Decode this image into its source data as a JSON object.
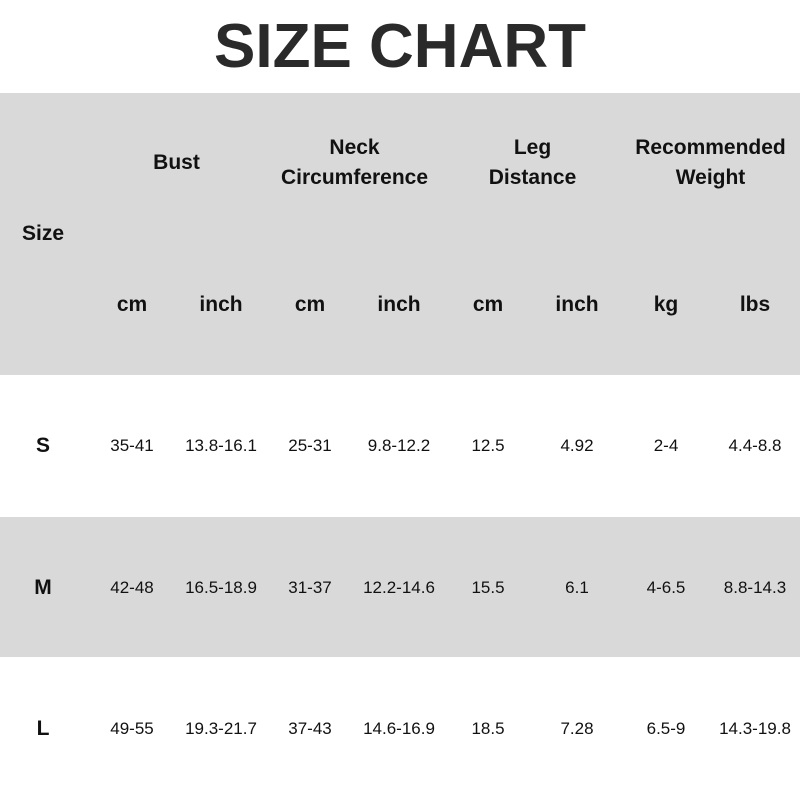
{
  "title": "SIZE CHART",
  "colors": {
    "header_band": "#d9d9d9",
    "alt_row": "#d9d9d9",
    "title": "#2a2a2a"
  },
  "chart_data": {
    "type": "table",
    "title": "SIZE CHART",
    "size_header": "Size",
    "groups": [
      {
        "label_lines": [
          "Bust"
        ],
        "units": [
          "cm",
          "inch"
        ]
      },
      {
        "label_lines": [
          "Neck",
          "Circumference"
        ],
        "units": [
          "cm",
          "inch"
        ]
      },
      {
        "label_lines": [
          "Leg",
          "Distance"
        ],
        "units": [
          "cm",
          "inch"
        ]
      },
      {
        "label_lines": [
          "Recommended",
          "Weight"
        ],
        "units": [
          "kg",
          "lbs"
        ]
      }
    ],
    "rows": [
      {
        "size": "S",
        "values": [
          "35-41",
          "13.8-16.1",
          "25-31",
          "9.8-12.2",
          "12.5",
          "4.92",
          "2-4",
          "4.4-8.8"
        ]
      },
      {
        "size": "M",
        "values": [
          "42-48",
          "16.5-18.9",
          "31-37",
          "12.2-14.6",
          "15.5",
          "6.1",
          "4-6.5",
          "8.8-14.3"
        ]
      },
      {
        "size": "L",
        "values": [
          "49-55",
          "19.3-21.7",
          "37-43",
          "14.6-16.9",
          "18.5",
          "7.28",
          "6.5-9",
          "14.3-19.8"
        ]
      }
    ]
  }
}
